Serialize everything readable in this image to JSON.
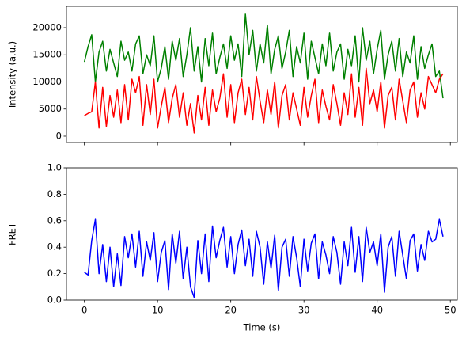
{
  "chart_data": [
    {
      "type": "line",
      "ylabel": "Intensity (a.u.)",
      "x": [
        0,
        0.5,
        1,
        1.5,
        2,
        2.5,
        3,
        3.5,
        4,
        4.5,
        5,
        5.5,
        6,
        6.5,
        7,
        7.5,
        8,
        8.5,
        9,
        9.5,
        10,
        10.5,
        11,
        11.5,
        12,
        12.5,
        13,
        13.5,
        14,
        14.5,
        15,
        15.5,
        16,
        16.5,
        17,
        17.5,
        18,
        18.5,
        19,
        19.5,
        20,
        20.5,
        21,
        21.5,
        22,
        22.5,
        23,
        23.5,
        24,
        24.5,
        25,
        25.5,
        26,
        26.5,
        27,
        27.5,
        28,
        28.5,
        29,
        29.5,
        30,
        30.5,
        31,
        31.5,
        32,
        32.5,
        33,
        33.5,
        34,
        34.5,
        35,
        35.5,
        36,
        36.5,
        37,
        37.5,
        38,
        38.5,
        39,
        39.5,
        40,
        40.5,
        41,
        41.5,
        42,
        42.5,
        43,
        43.5,
        44,
        44.5,
        45,
        45.5,
        46,
        46.5,
        47,
        47.5,
        48,
        48.5,
        49
      ],
      "series": [
        {
          "color": "#008000",
          "values": [
            13700,
            16500,
            18700,
            10000,
            15500,
            17500,
            12000,
            16000,
            13500,
            11000,
            17500,
            14000,
            15500,
            12000,
            17000,
            18500,
            11500,
            15000,
            13000,
            18500,
            10000,
            12500,
            16500,
            10500,
            17500,
            14000,
            18000,
            11000,
            15000,
            20000,
            12000,
            16500,
            10000,
            18000,
            13000,
            19000,
            11500,
            14500,
            17000,
            12500,
            18500,
            14000,
            17000,
            11000,
            22500,
            15000,
            19500,
            12000,
            17000,
            13500,
            20500,
            11500,
            16000,
            18500,
            12500,
            15500,
            19500,
            11000,
            16500,
            13500,
            19000,
            10500,
            17500,
            14500,
            11500,
            17000,
            13000,
            19000,
            12000,
            15500,
            17000,
            10500,
            16000,
            13000,
            18500,
            10000,
            20000,
            14000,
            17500,
            11500,
            16000,
            19500,
            10500,
            15000,
            17500,
            12000,
            18000,
            11000,
            15500,
            13500,
            18500,
            10500,
            16500,
            12500,
            15000,
            17000,
            11000,
            12000,
            7000
          ]
        },
        {
          "color": "#ff0000",
          "values": [
            3800,
            4200,
            4500,
            10000,
            1500,
            9000,
            1800,
            7500,
            3500,
            8500,
            2500,
            9500,
            3000,
            10500,
            8000,
            11000,
            2000,
            9500,
            4000,
            10500,
            1500,
            5500,
            9000,
            2500,
            7000,
            9500,
            3500,
            8000,
            2000,
            6000,
            600,
            7500,
            3000,
            9000,
            2000,
            8500,
            4500,
            7000,
            11500,
            3500,
            9500,
            2500,
            8000,
            10500,
            4000,
            9000,
            3000,
            11000,
            6500,
            2500,
            8500,
            4000,
            10000,
            1500,
            7500,
            9500,
            3000,
            8000,
            5000,
            2000,
            9000,
            3500,
            7500,
            10500,
            2500,
            8500,
            5500,
            3000,
            9500,
            6000,
            2000,
            8000,
            4000,
            11500,
            3500,
            9000,
            2000,
            12500,
            6000,
            8500,
            4500,
            10000,
            1500,
            7500,
            9000,
            3000,
            10500,
            6500,
            2500,
            8500,
            10000,
            3500,
            8000,
            5000,
            11000,
            9500,
            8000,
            10500,
            11500
          ]
        }
      ],
      "xlim": [
        -2.45,
        50.95
      ],
      "xticks": [
        0,
        10,
        20,
        30,
        40,
        50
      ],
      "ylim": [
        -1170,
        23940
      ],
      "yticks": [
        0,
        5000,
        10000,
        15000,
        20000
      ]
    },
    {
      "type": "line",
      "ylabel": "FRET",
      "xlabel": "Time (s)",
      "x": [
        0,
        0.5,
        1,
        1.5,
        2,
        2.5,
        3,
        3.5,
        4,
        4.5,
        5,
        5.5,
        6,
        6.5,
        7,
        7.5,
        8,
        8.5,
        9,
        9.5,
        10,
        10.5,
        11,
        11.5,
        12,
        12.5,
        13,
        13.5,
        14,
        14.5,
        15,
        15.5,
        16,
        16.5,
        17,
        17.5,
        18,
        18.5,
        19,
        19.5,
        20,
        20.5,
        21,
        21.5,
        22,
        22.5,
        23,
        23.5,
        24,
        24.5,
        25,
        25.5,
        26,
        26.5,
        27,
        27.5,
        28,
        28.5,
        29,
        29.5,
        30,
        30.5,
        31,
        31.5,
        32,
        32.5,
        33,
        33.5,
        34,
        34.5,
        35,
        35.5,
        36,
        36.5,
        37,
        37.5,
        38,
        38.5,
        39,
        39.5,
        40,
        40.5,
        41,
        41.5,
        42,
        42.5,
        43,
        43.5,
        44,
        44.5,
        45,
        45.5,
        46,
        46.5,
        47,
        47.5,
        48,
        48.5,
        49
      ],
      "series": [
        {
          "color": "#0000ff",
          "values": [
            0.21,
            0.19,
            0.45,
            0.61,
            0.2,
            0.42,
            0.14,
            0.4,
            0.1,
            0.35,
            0.11,
            0.48,
            0.32,
            0.5,
            0.25,
            0.52,
            0.18,
            0.44,
            0.3,
            0.51,
            0.14,
            0.36,
            0.45,
            0.08,
            0.5,
            0.28,
            0.52,
            0.16,
            0.4,
            0.1,
            0.02,
            0.45,
            0.2,
            0.5,
            0.14,
            0.56,
            0.32,
            0.45,
            0.55,
            0.25,
            0.48,
            0.2,
            0.42,
            0.53,
            0.26,
            0.46,
            0.18,
            0.52,
            0.4,
            0.12,
            0.44,
            0.24,
            0.49,
            0.07,
            0.4,
            0.46,
            0.18,
            0.48,
            0.32,
            0.1,
            0.46,
            0.22,
            0.43,
            0.5,
            0.16,
            0.44,
            0.34,
            0.2,
            0.48,
            0.36,
            0.12,
            0.44,
            0.26,
            0.55,
            0.21,
            0.48,
            0.14,
            0.55,
            0.36,
            0.44,
            0.26,
            0.5,
            0.06,
            0.4,
            0.48,
            0.18,
            0.52,
            0.34,
            0.16,
            0.45,
            0.5,
            0.22,
            0.42,
            0.3,
            0.52,
            0.44,
            0.46,
            0.61,
            0.48
          ]
        }
      ],
      "xlim": [
        -2.45,
        50.95
      ],
      "xticks": [
        0,
        10,
        20,
        30,
        40,
        50
      ],
      "ylim": [
        0,
        1
      ],
      "yticks": [
        {
          "value": 0,
          "label": "0.0"
        },
        {
          "value": 0.2,
          "label": "0.2"
        },
        {
          "value": 0.4,
          "label": "0.4"
        },
        {
          "value": 0.6,
          "label": "0.6"
        },
        {
          "value": 0.8,
          "label": "0.8"
        },
        {
          "value": 1,
          "label": "1.0"
        }
      ]
    }
  ]
}
